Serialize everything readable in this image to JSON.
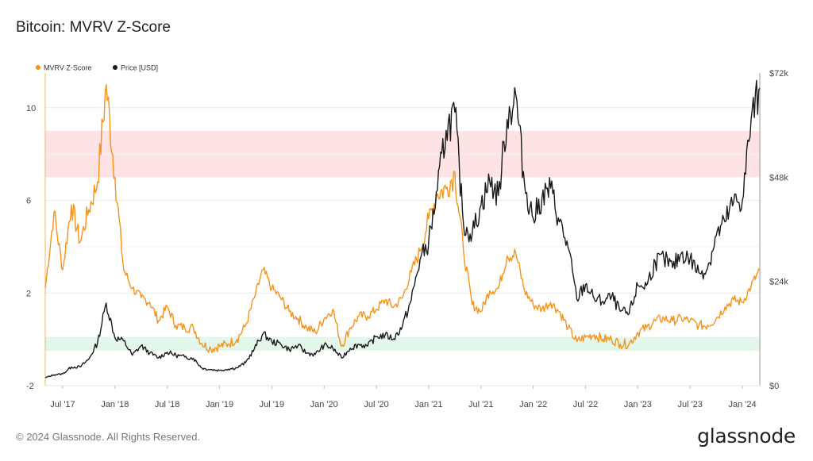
{
  "title": "Bitcoin: MVRV Z-Score",
  "footer": {
    "copyright": "© 2024 Glassnode. All Rights Reserved.",
    "brand": "glassnode"
  },
  "colors": {
    "mvrv": "#f7931a",
    "price": "#1a1a1a",
    "red_band": "#fde3e3",
    "green_band": "#e2f6ea"
  },
  "chart_data": {
    "type": "line",
    "title": "Bitcoin: MVRV Z-Score",
    "legend": [
      "MVRV Z-Score",
      "Price [USD]"
    ],
    "legend_position": "top-left",
    "grid": true,
    "x_ticks": [
      "Jul '17",
      "Jan '18",
      "Jul '18",
      "Jan '19",
      "Jul '19",
      "Jan '20",
      "Jul '20",
      "Jan '21",
      "Jul '21",
      "Jan '22",
      "Jul '22",
      "Jan '23",
      "Jul '23",
      "Jan '24"
    ],
    "y_left": {
      "ticks": [
        "-2",
        "2",
        "6",
        "10"
      ],
      "min": -2,
      "max": 11.5
    },
    "y_right": {
      "ticks": [
        "$0",
        "$24k",
        "$48k",
        "$72k"
      ],
      "min": 0,
      "max": 72000
    },
    "bands": [
      {
        "name": "red",
        "from": 7,
        "to": 9
      },
      {
        "name": "green",
        "from": -0.5,
        "to": 0.1
      }
    ],
    "x_range": [
      "2017-05",
      "2024-03"
    ],
    "series": [
      {
        "name": "MVRV Z-Score",
        "axis": "left",
        "points": [
          [
            "2017-05",
            2.2
          ],
          [
            "2017-06",
            5.5
          ],
          [
            "2017-07",
            3.0
          ],
          [
            "2017-08",
            5.8
          ],
          [
            "2017-09",
            4.2
          ],
          [
            "2017-10",
            5.6
          ],
          [
            "2017-11",
            6.8
          ],
          [
            "2017-12",
            11.0
          ],
          [
            "2018-01",
            7.0
          ],
          [
            "2018-02",
            3.0
          ],
          [
            "2018-03",
            2.2
          ],
          [
            "2018-04",
            1.8
          ],
          [
            "2018-05",
            1.6
          ],
          [
            "2018-06",
            0.8
          ],
          [
            "2018-07",
            1.4
          ],
          [
            "2018-08",
            0.6
          ],
          [
            "2018-09",
            0.5
          ],
          [
            "2018-10",
            0.5
          ],
          [
            "2018-11",
            -0.2
          ],
          [
            "2018-12",
            -0.4
          ],
          [
            "2019-01",
            -0.3
          ],
          [
            "2019-02",
            -0.2
          ],
          [
            "2019-03",
            0.0
          ],
          [
            "2019-04",
            0.6
          ],
          [
            "2019-05",
            1.8
          ],
          [
            "2019-06",
            3.0
          ],
          [
            "2019-07",
            2.2
          ],
          [
            "2019-08",
            1.8
          ],
          [
            "2019-09",
            1.2
          ],
          [
            "2019-10",
            0.9
          ],
          [
            "2019-11",
            0.5
          ],
          [
            "2019-12",
            0.3
          ],
          [
            "2020-01",
            0.9
          ],
          [
            "2020-02",
            1.3
          ],
          [
            "2020-03",
            -0.3
          ],
          [
            "2020-04",
            0.5
          ],
          [
            "2020-05",
            1.0
          ],
          [
            "2020-06",
            1.0
          ],
          [
            "2020-07",
            1.3
          ],
          [
            "2020-08",
            1.7
          ],
          [
            "2020-09",
            1.4
          ],
          [
            "2020-10",
            1.8
          ],
          [
            "2020-11",
            2.9
          ],
          [
            "2020-12",
            3.8
          ],
          [
            "2021-01",
            5.2
          ],
          [
            "2021-02",
            6.3
          ],
          [
            "2021-03",
            6.5
          ],
          [
            "2021-04",
            7.2
          ],
          [
            "2021-05",
            3.8
          ],
          [
            "2021-06",
            1.5
          ],
          [
            "2021-07",
            1.2
          ],
          [
            "2021-08",
            2.1
          ],
          [
            "2021-09",
            2.2
          ],
          [
            "2021-10",
            3.6
          ],
          [
            "2021-11",
            3.7
          ],
          [
            "2021-12",
            2.1
          ],
          [
            "2022-01",
            1.5
          ],
          [
            "2022-02",
            1.3
          ],
          [
            "2022-03",
            1.6
          ],
          [
            "2022-04",
            1.2
          ],
          [
            "2022-05",
            0.5
          ],
          [
            "2022-06",
            -0.1
          ],
          [
            "2022-07",
            0.1
          ],
          [
            "2022-08",
            0.2
          ],
          [
            "2022-09",
            0.0
          ],
          [
            "2022-10",
            0.0
          ],
          [
            "2022-11",
            -0.2
          ],
          [
            "2022-12",
            -0.2
          ],
          [
            "2023-01",
            0.3
          ],
          [
            "2023-02",
            0.5
          ],
          [
            "2023-03",
            0.8
          ],
          [
            "2023-04",
            0.9
          ],
          [
            "2023-05",
            0.8
          ],
          [
            "2023-06",
            0.9
          ],
          [
            "2023-07",
            0.8
          ],
          [
            "2023-08",
            0.6
          ],
          [
            "2023-09",
            0.6
          ],
          [
            "2023-10",
            0.9
          ],
          [
            "2023-11",
            1.4
          ],
          [
            "2023-12",
            1.7
          ],
          [
            "2024-01",
            1.6
          ],
          [
            "2024-02",
            2.3
          ],
          [
            "2024-03",
            3.0
          ]
        ]
      },
      {
        "name": "Price [USD]",
        "axis": "right",
        "points": [
          [
            "2017-05",
            1800
          ],
          [
            "2017-06",
            2500
          ],
          [
            "2017-07",
            2700
          ],
          [
            "2017-08",
            4300
          ],
          [
            "2017-09",
            4300
          ],
          [
            "2017-10",
            6100
          ],
          [
            "2017-11",
            9900
          ],
          [
            "2017-12",
            19000
          ],
          [
            "2018-01",
            11000
          ],
          [
            "2018-02",
            10300
          ],
          [
            "2018-03",
            7000
          ],
          [
            "2018-04",
            9200
          ],
          [
            "2018-05",
            7500
          ],
          [
            "2018-06",
            6400
          ],
          [
            "2018-07",
            7700
          ],
          [
            "2018-08",
            7000
          ],
          [
            "2018-09",
            6600
          ],
          [
            "2018-10",
            6300
          ],
          [
            "2018-11",
            4000
          ],
          [
            "2018-12",
            3700
          ],
          [
            "2019-01",
            3500
          ],
          [
            "2019-02",
            3800
          ],
          [
            "2019-03",
            4100
          ],
          [
            "2019-04",
            5300
          ],
          [
            "2019-05",
            8500
          ],
          [
            "2019-06",
            12000
          ],
          [
            "2019-07",
            10100
          ],
          [
            "2019-08",
            9600
          ],
          [
            "2019-09",
            8300
          ],
          [
            "2019-10",
            9200
          ],
          [
            "2019-11",
            7500
          ],
          [
            "2019-12",
            7200
          ],
          [
            "2020-01",
            9300
          ],
          [
            "2020-02",
            8600
          ],
          [
            "2020-03",
            6400
          ],
          [
            "2020-04",
            8600
          ],
          [
            "2020-05",
            9500
          ],
          [
            "2020-06",
            9100
          ],
          [
            "2020-07",
            11300
          ],
          [
            "2020-08",
            11600
          ],
          [
            "2020-09",
            10800
          ],
          [
            "2020-10",
            13800
          ],
          [
            "2020-11",
            19700
          ],
          [
            "2020-12",
            29000
          ],
          [
            "2021-01",
            33000
          ],
          [
            "2021-02",
            45000
          ],
          [
            "2021-03",
            58800
          ],
          [
            "2021-04",
            63000
          ],
          [
            "2021-05",
            37000
          ],
          [
            "2021-06",
            35000
          ],
          [
            "2021-07",
            41500
          ],
          [
            "2021-08",
            47000
          ],
          [
            "2021-09",
            43800
          ],
          [
            "2021-10",
            61300
          ],
          [
            "2021-11",
            67000
          ],
          [
            "2021-12",
            46300
          ],
          [
            "2022-01",
            38500
          ],
          [
            "2022-02",
            43200
          ],
          [
            "2022-03",
            45500
          ],
          [
            "2022-04",
            37700
          ],
          [
            "2022-05",
            31800
          ],
          [
            "2022-06",
            19900
          ],
          [
            "2022-07",
            23300
          ],
          [
            "2022-08",
            20000
          ],
          [
            "2022-09",
            19400
          ],
          [
            "2022-10",
            20500
          ],
          [
            "2022-11",
            17100
          ],
          [
            "2022-12",
            16500
          ],
          [
            "2023-01",
            23100
          ],
          [
            "2023-02",
            23100
          ],
          [
            "2023-03",
            28500
          ],
          [
            "2023-04",
            29200
          ],
          [
            "2023-05",
            27200
          ],
          [
            "2023-06",
            30500
          ],
          [
            "2023-07",
            29200
          ],
          [
            "2023-08",
            26000
          ],
          [
            "2023-09",
            27000
          ],
          [
            "2023-10",
            34500
          ],
          [
            "2023-11",
            37700
          ],
          [
            "2023-12",
            42300
          ],
          [
            "2024-01",
            42600
          ],
          [
            "2024-02",
            61200
          ],
          [
            "2024-03",
            68500
          ]
        ]
      }
    ]
  }
}
